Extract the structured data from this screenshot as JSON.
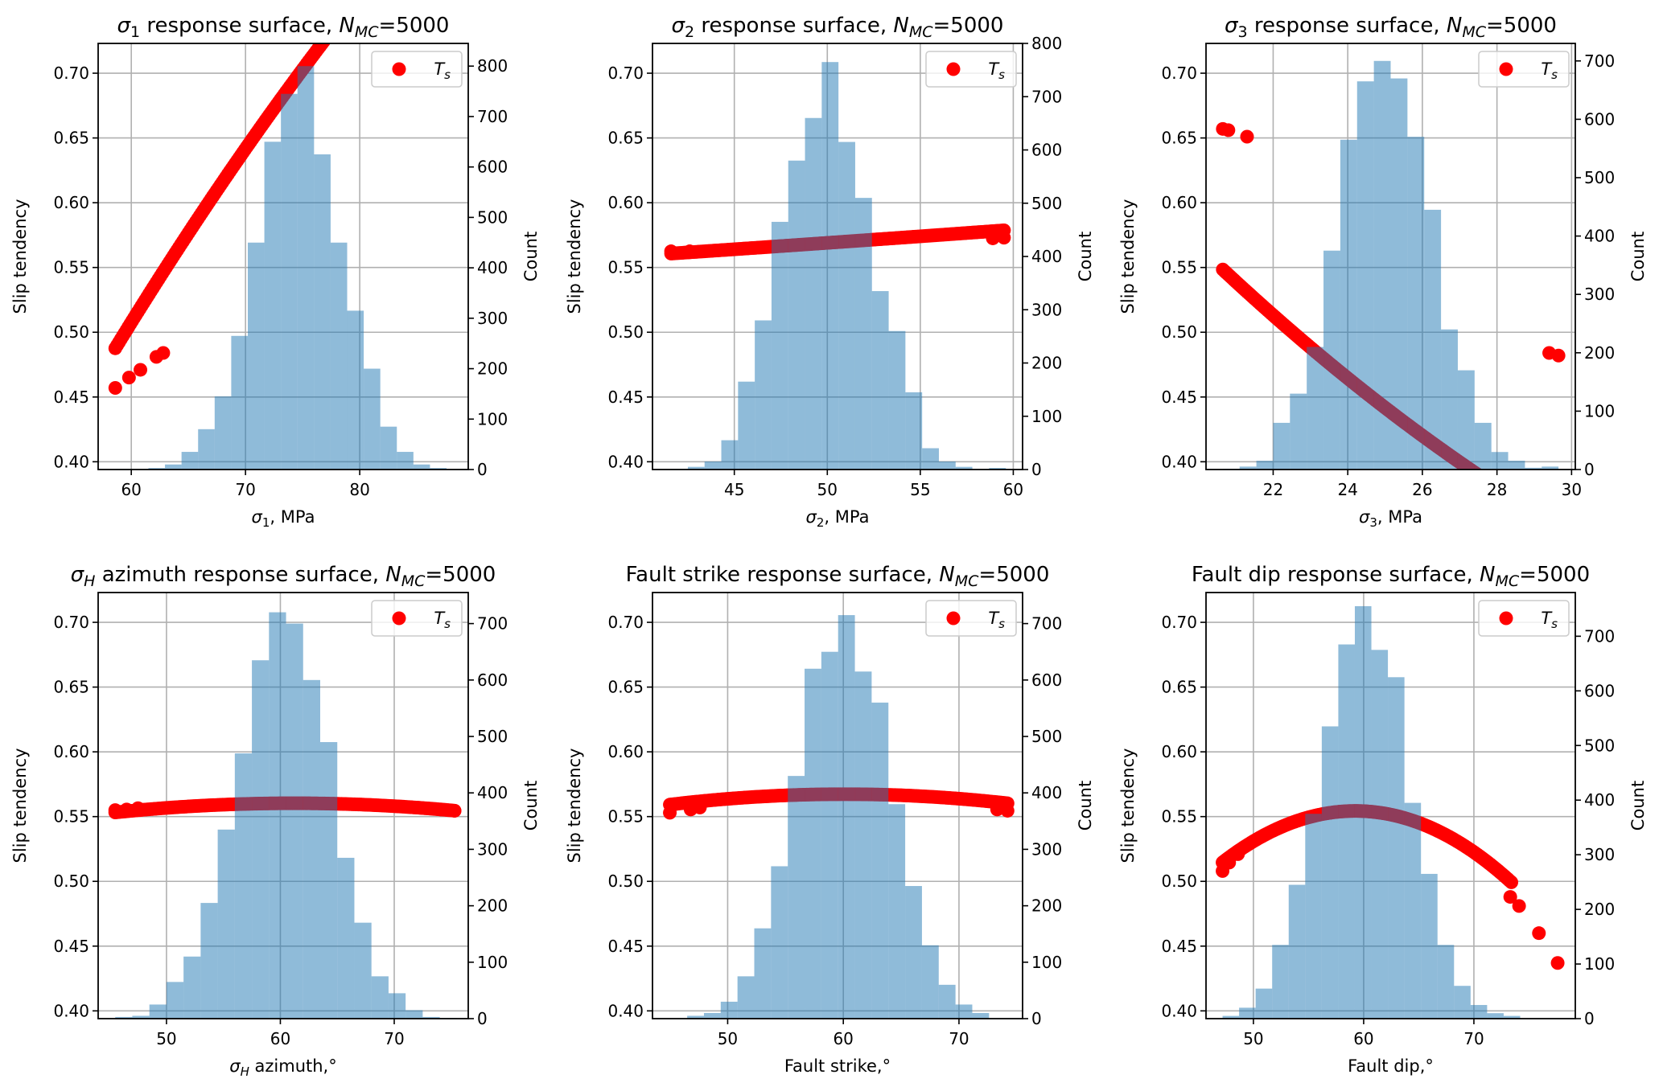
{
  "figure": {
    "n_mc_label": "N",
    "n_mc_subscript": "MC",
    "n_mc_value": "=5000",
    "title_suffix": " response surface, ",
    "legend_label": "T",
    "legend_subscript": "s",
    "scatter_color": "#ff0000",
    "hist_color": "#1f77b4",
    "hist_alpha": 0.5
  },
  "chart_data": [
    {
      "type": "bar+scatter",
      "panel": "sigma1",
      "title_prefix": "σ",
      "title_prefix_sub": "1",
      "title_main": "",
      "xlabel_prefix": "σ",
      "xlabel_sub": "1",
      "xlabel_rest": ", MPa",
      "ylabel": "Slip tendency",
      "y2label": "Count",
      "xlim": [
        57.1,
        89.5
      ],
      "ylim": [
        0.394,
        0.723
      ],
      "y2lim": [
        0,
        845
      ],
      "xticks": [
        60,
        70,
        80
      ],
      "yticks": [
        0.4,
        0.45,
        0.5,
        0.55,
        0.6,
        0.65,
        0.7
      ],
      "y2ticks": [
        0,
        100,
        200,
        300,
        400,
        500,
        600,
        700,
        800
      ],
      "hist_edges": [
        58.6,
        60.05,
        61.5,
        62.95,
        64.4,
        65.85,
        67.3,
        68.75,
        70.2,
        71.65,
        73.1,
        74.55,
        76.0,
        77.45,
        78.9,
        80.35,
        81.8,
        83.25,
        84.7,
        86.15,
        87.6,
        89.05
      ],
      "hist_counts": [
        1,
        0,
        3,
        10,
        35,
        80,
        145,
        265,
        450,
        650,
        745,
        800,
        625,
        450,
        315,
        200,
        85,
        35,
        10,
        3,
        0
      ],
      "curve": {
        "kind": "poly",
        "x_range": [
          58.6,
          88.2
        ],
        "coef": [
          -0.618,
          0.02335,
          -7.65e-05
        ]
      },
      "isolated_points": [
        [
          58.6,
          0.457
        ],
        [
          59.8,
          0.465
        ],
        [
          60.8,
          0.471
        ],
        [
          62.2,
          0.481
        ],
        [
          62.8,
          0.484
        ]
      ]
    },
    {
      "type": "bar+scatter",
      "panel": "sigma2",
      "title_prefix": "σ",
      "title_prefix_sub": "2",
      "title_main": "",
      "xlabel_prefix": "σ",
      "xlabel_sub": "2",
      "xlabel_rest": ", MPa",
      "ylabel": "Slip tendency",
      "y2label": "Count",
      "xlim": [
        40.6,
        60.5
      ],
      "ylim": [
        0.394,
        0.723
      ],
      "y2lim": [
        0,
        800
      ],
      "xticks": [
        45,
        50,
        55,
        60
      ],
      "yticks": [
        0.4,
        0.45,
        0.5,
        0.55,
        0.6,
        0.65,
        0.7
      ],
      "y2ticks": [
        0,
        100,
        200,
        300,
        400,
        500,
        600,
        700,
        800
      ],
      "hist_edges": [
        41.6,
        42.5,
        43.4,
        44.3,
        45.2,
        46.1,
        47.0,
        47.9,
        48.8,
        49.7,
        50.6,
        51.5,
        52.4,
        53.3,
        54.2,
        55.1,
        56.0,
        56.9,
        57.8,
        58.7,
        59.6
      ],
      "hist_counts": [
        1,
        5,
        15,
        55,
        165,
        280,
        465,
        580,
        660,
        765,
        615,
        510,
        335,
        260,
        145,
        40,
        15,
        5,
        0,
        3
      ],
      "curve": {
        "kind": "poly",
        "x_range": [
          41.6,
          59.5
        ],
        "coef": [
          0.524,
          0.0008,
          2e-06
        ]
      },
      "isolated_points": [
        [
          41.6,
          0.5625
        ],
        [
          42.6,
          0.5625
        ],
        [
          58.9,
          0.5725
        ],
        [
          59.5,
          0.573
        ]
      ]
    },
    {
      "type": "bar+scatter",
      "panel": "sigma3",
      "title_prefix": "σ",
      "title_prefix_sub": "3",
      "title_main": "",
      "xlabel_prefix": "σ",
      "xlabel_sub": "3",
      "xlabel_rest": ", MPa",
      "ylabel": "Slip tendency",
      "y2label": "Count",
      "xlim": [
        20.2,
        30.1
      ],
      "ylim": [
        0.394,
        0.723
      ],
      "y2lim": [
        0,
        730
      ],
      "xticks": [
        22,
        24,
        26,
        28,
        30
      ],
      "yticks": [
        0.4,
        0.45,
        0.5,
        0.55,
        0.6,
        0.65,
        0.7
      ],
      "y2ticks": [
        0,
        100,
        200,
        300,
        400,
        500,
        600,
        700
      ],
      "hist_edges": [
        20.65,
        21.1,
        21.55,
        22.0,
        22.45,
        22.9,
        23.35,
        23.8,
        24.25,
        24.7,
        25.15,
        25.6,
        26.05,
        26.5,
        26.95,
        27.4,
        27.85,
        28.3,
        28.75,
        29.2,
        29.65
      ],
      "hist_counts": [
        1,
        5,
        15,
        80,
        130,
        210,
        375,
        565,
        665,
        700,
        670,
        570,
        445,
        240,
        170,
        80,
        30,
        15,
        3,
        5
      ],
      "curve": {
        "kind": "poly",
        "x_range": [
          20.65,
          29.65
        ],
        "coef": [
          1.3355,
          -0.04935,
          0.000544
        ]
      },
      "isolated_points": [
        [
          20.65,
          0.657
        ],
        [
          20.8,
          0.656
        ],
        [
          21.3,
          0.651
        ],
        [
          29.4,
          0.484
        ],
        [
          29.65,
          0.482
        ]
      ]
    },
    {
      "type": "bar+scatter",
      "panel": "sigmaH_azimuth",
      "title_prefix": "σ",
      "title_prefix_sub": "H",
      "title_main": " azimuth",
      "xlabel_prefix": "σ",
      "xlabel_sub": "H",
      "xlabel_rest": " azimuth,°",
      "ylabel": "Slip tendency",
      "y2label": "Count",
      "xlim": [
        44.0,
        76.5
      ],
      "ylim": [
        0.394,
        0.723
      ],
      "y2lim": [
        0,
        755
      ],
      "xticks": [
        50,
        60,
        70
      ],
      "yticks": [
        0.4,
        0.45,
        0.5,
        0.55,
        0.6,
        0.65,
        0.7
      ],
      "y2ticks": [
        0,
        100,
        200,
        300,
        400,
        500,
        600,
        700
      ],
      "hist_edges": [
        45.5,
        47.0,
        48.5,
        50.0,
        51.5,
        53.0,
        54.5,
        56.0,
        57.5,
        59.0,
        60.5,
        62.0,
        63.5,
        65.0,
        66.5,
        68.0,
        69.5,
        71.0,
        72.5,
        74.0,
        75.5
      ],
      "hist_counts": [
        3,
        5,
        25,
        65,
        110,
        205,
        335,
        470,
        635,
        720,
        700,
        600,
        490,
        285,
        170,
        75,
        45,
        15,
        3,
        1
      ],
      "curve": {
        "kind": "poly",
        "x_range": [
          45.5,
          75.3
        ],
        "coef": [
          0.4525,
          0.003524,
          -2.88e-05
        ]
      },
      "isolated_points": [
        [
          45.5,
          0.555
        ],
        [
          46.5,
          0.5555
        ],
        [
          47.5,
          0.5565
        ],
        [
          74.1,
          0.5555
        ],
        [
          75.3,
          0.5545
        ]
      ]
    },
    {
      "type": "bar+scatter",
      "panel": "fault_strike",
      "title_prefix": "",
      "title_prefix_sub": "",
      "title_main": "Fault strike",
      "xlabel_prefix": "",
      "xlabel_sub": "",
      "xlabel_rest": "Fault strike,°",
      "ylabel": "Slip tendency",
      "y2label": "Count",
      "xlim": [
        43.5,
        75.5
      ],
      "ylim": [
        0.394,
        0.723
      ],
      "y2lim": [
        0,
        755
      ],
      "xticks": [
        50,
        60,
        70
      ],
      "yticks": [
        0.4,
        0.45,
        0.5,
        0.55,
        0.6,
        0.65,
        0.7
      ],
      "y2ticks": [
        0,
        100,
        200,
        300,
        400,
        500,
        600,
        700
      ],
      "hist_edges": [
        46.5,
        47.95,
        49.4,
        50.85,
        52.3,
        53.75,
        55.2,
        56.65,
        58.1,
        59.55,
        61.0,
        62.45,
        63.9,
        65.35,
        66.8,
        68.25,
        69.7,
        71.15,
        72.6,
        74.05
      ],
      "hist_counts": [
        5,
        10,
        30,
        75,
        160,
        270,
        430,
        620,
        650,
        715,
        615,
        560,
        380,
        235,
        130,
        60,
        25,
        10,
        0
      ],
      "curve": {
        "kind": "poly",
        "x_range": [
          45.0,
          74.2
        ],
        "coef": [
          0.4395,
          0.004254,
          -3.54e-05
        ]
      },
      "isolated_points": [
        [
          45.0,
          0.553
        ],
        [
          46.8,
          0.5555
        ],
        [
          47.6,
          0.557
        ],
        [
          73.3,
          0.5555
        ],
        [
          74.2,
          0.5545
        ]
      ]
    },
    {
      "type": "bar+scatter",
      "panel": "fault_dip",
      "title_prefix": "",
      "title_prefix_sub": "",
      "title_main": "Fault dip",
      "xlabel_prefix": "",
      "xlabel_sub": "",
      "xlabel_rest": "Fault dip,°",
      "ylabel": "Slip tendency",
      "y2label": "Count",
      "xlim": [
        45.7,
        79.2
      ],
      "ylim": [
        0.394,
        0.723
      ],
      "y2lim": [
        0,
        780
      ],
      "xticks": [
        50,
        60,
        70
      ],
      "yticks": [
        0.4,
        0.45,
        0.5,
        0.55,
        0.6,
        0.65,
        0.7
      ],
      "y2ticks": [
        0,
        100,
        200,
        300,
        400,
        500,
        600,
        700
      ],
      "hist_edges": [
        47.2,
        48.7,
        50.2,
        51.7,
        53.2,
        54.7,
        56.2,
        57.7,
        59.2,
        60.7,
        62.2,
        63.7,
        65.2,
        66.7,
        68.2,
        69.7,
        71.2,
        72.7,
        74.2
      ],
      "hist_counts": [
        5,
        20,
        55,
        135,
        245,
        375,
        535,
        685,
        755,
        675,
        625,
        395,
        265,
        135,
        60,
        25,
        10,
        5
      ],
      "curve": {
        "kind": "poly",
        "x_range": [
          47.2,
          73.4
        ],
        "coef": [
          -0.4088,
          0.03252,
          -0.0002745
        ]
      },
      "isolated_points": [
        [
          47.2,
          0.508
        ],
        [
          47.8,
          0.5145
        ],
        [
          48.6,
          0.521
        ],
        [
          73.3,
          0.488
        ],
        [
          74.1,
          0.481
        ],
        [
          75.9,
          0.46
        ],
        [
          77.6,
          0.437
        ]
      ]
    }
  ]
}
